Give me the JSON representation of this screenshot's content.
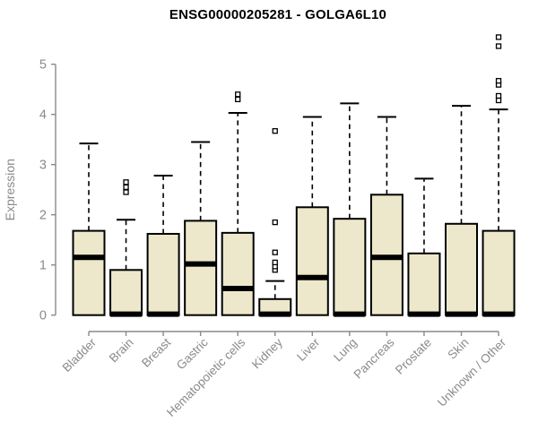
{
  "title": "ENSG00000205281 - GOLGA6L10",
  "chart_data": {
    "type": "boxplot",
    "title": "ENSG00000205281 - GOLGA6L10",
    "ylabel": "Expression",
    "xlabel": "",
    "yticks": [
      0,
      1,
      2,
      3,
      4,
      5
    ],
    "ylim": [
      0,
      5.6
    ],
    "grid": false,
    "legend": "none",
    "categories": [
      "Bladder",
      "Brain",
      "Breast",
      "Gastric",
      "Hematopoietic cells",
      "Kidney",
      "Liver",
      "Lung",
      "Pancreas",
      "Prostate",
      "Skin",
      "Unknown / Other"
    ],
    "boxes": [
      {
        "category": "Bladder",
        "q1": 0,
        "median": 1.15,
        "q3": 1.68,
        "whisker_low": 0,
        "whisker_high": 3.42,
        "outliers": []
      },
      {
        "category": "Brain",
        "q1": 0,
        "median": 0.02,
        "q3": 0.9,
        "whisker_low": 0,
        "whisker_high": 1.9,
        "outliers": [
          2.45,
          2.55,
          2.65
        ]
      },
      {
        "category": "Breast",
        "q1": 0,
        "median": 0.02,
        "q3": 1.62,
        "whisker_low": 0,
        "whisker_high": 2.78,
        "outliers": []
      },
      {
        "category": "Gastric",
        "q1": 0,
        "median": 1.02,
        "q3": 1.88,
        "whisker_low": 0,
        "whisker_high": 3.45,
        "outliers": []
      },
      {
        "category": "Hematopoietic cells",
        "q1": 0,
        "median": 0.53,
        "q3": 1.64,
        "whisker_low": 0,
        "whisker_high": 4.03,
        "outliers": [
          4.3,
          4.4
        ]
      },
      {
        "category": "Kidney",
        "q1": 0,
        "median": 0.02,
        "q3": 0.32,
        "whisker_low": 0,
        "whisker_high": 0.68,
        "outliers": [
          0.9,
          0.97,
          1.05,
          1.25,
          1.85,
          3.67
        ]
      },
      {
        "category": "Liver",
        "q1": 0,
        "median": 0.75,
        "q3": 2.15,
        "whisker_low": 0,
        "whisker_high": 3.95,
        "outliers": []
      },
      {
        "category": "Lung",
        "q1": 0,
        "median": 0.02,
        "q3": 1.92,
        "whisker_low": 0,
        "whisker_high": 4.22,
        "outliers": []
      },
      {
        "category": "Pancreas",
        "q1": 0,
        "median": 1.15,
        "q3": 2.4,
        "whisker_low": 0,
        "whisker_high": 3.95,
        "outliers": []
      },
      {
        "category": "Prostate",
        "q1": 0,
        "median": 0.02,
        "q3": 1.23,
        "whisker_low": 0,
        "whisker_high": 2.72,
        "outliers": []
      },
      {
        "category": "Skin",
        "q1": 0,
        "median": 0.02,
        "q3": 1.82,
        "whisker_low": 0,
        "whisker_high": 4.17,
        "outliers": []
      },
      {
        "category": "Unknown / Other",
        "q1": 0,
        "median": 0.02,
        "q3": 1.68,
        "whisker_low": 0,
        "whisker_high": 4.1,
        "outliers": [
          4.28,
          4.37,
          4.59,
          4.67,
          5.36,
          5.54
        ]
      }
    ],
    "colors": {
      "box_fill": "#EDE8CB",
      "box_stroke": "#000000",
      "median": "#000000",
      "whisker": "#000000",
      "outlier_fill": "#FFFFFF",
      "outlier_stroke": "#000000",
      "axis": "#8A8A8A",
      "tick_label": "#8A8A8A",
      "title": "#000000",
      "background": "#FFFFFF"
    }
  }
}
